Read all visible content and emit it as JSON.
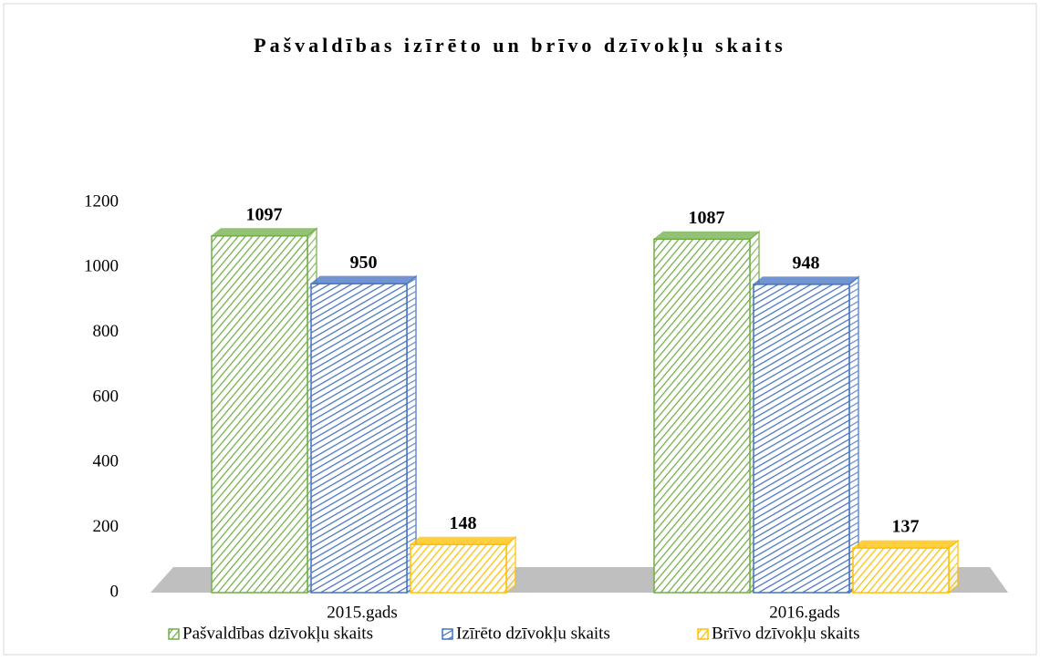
{
  "chart_data": {
    "type": "bar3d",
    "title": "Pašvaldības izīrēto un brīvo dzīvokļu skaits",
    "categories": [
      "2015.gads",
      "2016.gads"
    ],
    "series": [
      {
        "name": "Pašvaldības dzīvokļu skaits",
        "color": "#70ad47",
        "values": [
          1097,
          1087
        ]
      },
      {
        "name": "Izīrēto dzīvokļu skaits",
        "color": "#4472c4",
        "values": [
          950,
          948
        ]
      },
      {
        "name": "Brīvo dzīvokļu skaits",
        "color": "#ffc000",
        "values": [
          148,
          137
        ]
      }
    ],
    "ylim": [
      0,
      1200
    ],
    "yticks": [
      0,
      200,
      400,
      600,
      800,
      1000,
      1200
    ],
    "legend": "bottom"
  }
}
